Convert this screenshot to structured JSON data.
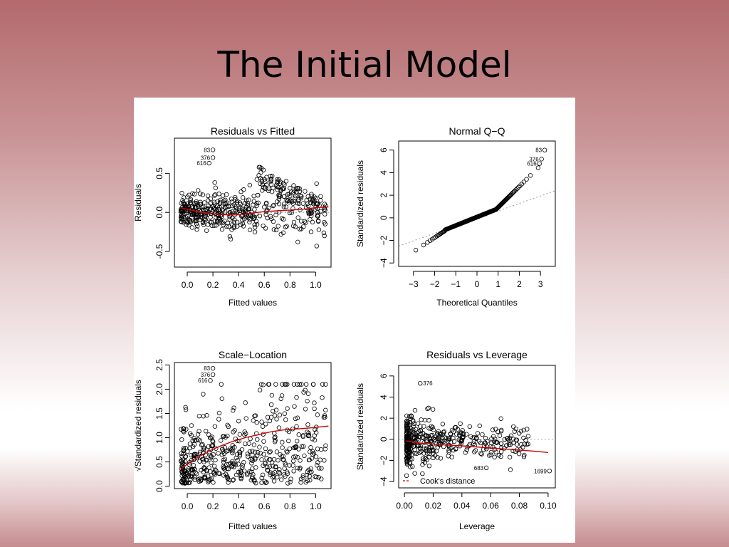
{
  "slide": {
    "title": "The Initial Model"
  },
  "chart_data": [
    {
      "type": "scatter",
      "title": "Residuals vs Fitted",
      "xlabel": "Fitted values",
      "ylabel": "Residuals",
      "xlim": [
        -0.1,
        1.12
      ],
      "ylim": [
        -0.7,
        0.95
      ],
      "xticks": [
        "0.0",
        "0.2",
        "0.4",
        "0.6",
        "0.8",
        "1.0"
      ],
      "xtick_values": [
        0,
        0.2,
        0.4,
        0.6,
        0.8,
        1.0
      ],
      "yticks": [
        "-0.5",
        "0.0",
        "0.5"
      ],
      "ytick_values": [
        -0.5,
        0,
        0.5
      ],
      "trend": {
        "color": "#cc0000",
        "x": [
          -0.05,
          0.1,
          0.2,
          0.3,
          0.4,
          0.5,
          0.6,
          0.7,
          0.8,
          0.9,
          1.0,
          1.1
        ],
        "y": [
          0.06,
          0.0,
          -0.02,
          -0.03,
          -0.03,
          -0.01,
          0.01,
          0.02,
          0.03,
          0.04,
          0.06,
          0.07
        ]
      },
      "ref_line": {
        "y": 0
      },
      "labeled_points": [
        {
          "label": "83",
          "x": 0.2,
          "y": 0.8
        },
        {
          "label": "376",
          "x": 0.2,
          "y": 0.7
        },
        {
          "label": "616",
          "x": 0.17,
          "y": 0.63
        }
      ],
      "cloud": {
        "n": 520,
        "xmin": -0.05,
        "xmax": 1.08,
        "spread": 0.32,
        "seed": 7,
        "kind": "resfit"
      }
    },
    {
      "type": "scatter",
      "title": "Normal Q−Q",
      "xlabel": "Theoretical Quantiles",
      "ylabel": "Standardized residuals",
      "xlim": [
        -3.7,
        3.7
      ],
      "ylim": [
        -4.3,
        6.8
      ],
      "xticks": [
        "−3",
        "−2",
        "−1",
        "0",
        "1",
        "2",
        "3"
      ],
      "xtick_values": [
        -3,
        -2,
        -1,
        0,
        1,
        2,
        3
      ],
      "yticks": [
        "−4",
        "−2",
        "0",
        "2",
        "4",
        "6"
      ],
      "ytick_values": [
        -4,
        -2,
        0,
        2,
        4,
        6
      ],
      "ref_line": {
        "x": [
          -3.7,
          3.7
        ],
        "y": [
          -2.5,
          2.4
        ]
      },
      "labeled_points": [
        {
          "label": "83",
          "x": 3.2,
          "y": 6.0
        },
        {
          "label": "376",
          "x": 3.05,
          "y": 5.2
        },
        {
          "label": "616",
          "x": 2.95,
          "y": 4.8
        }
      ],
      "cloud": {
        "n": 260,
        "seed": 11,
        "kind": "qq"
      }
    },
    {
      "type": "scatter",
      "title": "Scale−Location",
      "xlabel": "Fitted values",
      "ylabel": "√Standardized residuals",
      "xlim": [
        -0.1,
        1.12
      ],
      "ylim": [
        -0.05,
        2.55
      ],
      "xticks": [
        "0.0",
        "0.2",
        "0.4",
        "0.6",
        "0.8",
        "1.0"
      ],
      "xtick_values": [
        0,
        0.2,
        0.4,
        0.6,
        0.8,
        1.0
      ],
      "yticks": [
        "0.0",
        "0.5",
        "1.0",
        "1.5",
        "2.0",
        "2.5"
      ],
      "ytick_values": [
        0,
        0.5,
        1.0,
        1.5,
        2.0,
        2.5
      ],
      "trend": {
        "color": "#cc0000",
        "x": [
          -0.05,
          0.05,
          0.15,
          0.25,
          0.35,
          0.45,
          0.55,
          0.65,
          0.75,
          0.85,
          0.95,
          1.1
        ],
        "y": [
          0.35,
          0.55,
          0.7,
          0.82,
          0.92,
          1.0,
          1.06,
          1.12,
          1.16,
          1.18,
          1.2,
          1.24
        ]
      },
      "labeled_points": [
        {
          "label": "83",
          "x": 0.2,
          "y": 2.43
        },
        {
          "label": "376",
          "x": 0.2,
          "y": 2.3
        },
        {
          "label": "616",
          "x": 0.18,
          "y": 2.18
        }
      ],
      "cloud": {
        "n": 520,
        "xmin": -0.05,
        "xmax": 1.08,
        "seed": 23,
        "kind": "scaleloc"
      }
    },
    {
      "type": "scatter",
      "title": "Residuals vs Leverage",
      "xlabel": "Leverage",
      "ylabel": "Standardized residuals",
      "xlim": [
        -0.004,
        0.105
      ],
      "ylim": [
        -4.6,
        7.0
      ],
      "xticks": [
        "0.00",
        "0.02",
        "0.04",
        "0.06",
        "0.08",
        "0.10"
      ],
      "xtick_values": [
        0,
        0.02,
        0.04,
        0.06,
        0.08,
        0.1
      ],
      "yticks": [
        "−4",
        "−2",
        "0",
        "2",
        "4",
        "6"
      ],
      "ytick_values": [
        -4,
        -2,
        0,
        2,
        4,
        6
      ],
      "trend": {
        "color": "#cc0000",
        "x": [
          0.001,
          0.01,
          0.02,
          0.03,
          0.04,
          0.05,
          0.06,
          0.07,
          0.08,
          0.09,
          0.1
        ],
        "y": [
          -0.15,
          -0.35,
          -0.45,
          -0.55,
          -0.62,
          -0.72,
          -0.82,
          -0.92,
          -1.02,
          -1.12,
          -1.25
        ]
      },
      "labeled_points": [
        {
          "label": "376",
          "x": 0.011,
          "y": 5.3
        },
        {
          "label": "683",
          "x": 0.057,
          "y": -2.7
        },
        {
          "label": "1699",
          "x": 0.101,
          "y": -3.0
        }
      ],
      "legend": {
        "label": "Cook's distance",
        "position": "bottom-left"
      },
      "cloud": {
        "n": 420,
        "seed": 41,
        "kind": "leverage"
      }
    }
  ]
}
